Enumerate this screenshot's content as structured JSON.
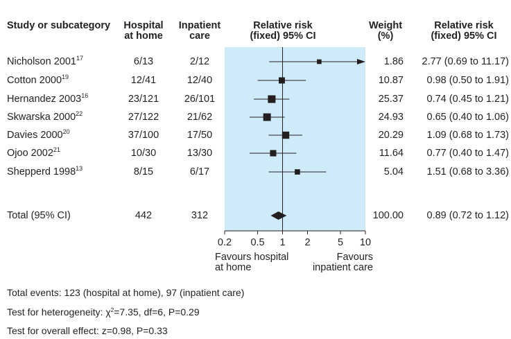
{
  "headers": {
    "study": "Study or subcategory",
    "hospital": [
      "Hospital",
      "at home"
    ],
    "inpatient": [
      "Inpatient",
      "care"
    ],
    "rr_plot": [
      "Relative risk",
      "(fixed) 95% CI"
    ],
    "weight": [
      "Weight",
      "(%)"
    ],
    "rr_text": [
      "Relative risk",
      "(fixed) 95% CI"
    ]
  },
  "studies": [
    {
      "name": "Nicholson 2001",
      "ref": "17",
      "hospital": "6/13",
      "inpatient": "2/12",
      "weight": "1.86",
      "rr": "2.77 (0.69 to 11.17)"
    },
    {
      "name": "Cotton 2000",
      "ref": "19",
      "hospital": "12/41",
      "inpatient": "12/40",
      "weight": "10.87",
      "rr": "0.98 (0.50 to 1.91)"
    },
    {
      "name": "Hernandez 2003",
      "ref": "16",
      "hospital": "23/121",
      "inpatient": "26/101",
      "weight": "25.37",
      "rr": "0.74 (0.45 to 1.21)"
    },
    {
      "name": "Skwarska 2000",
      "ref": "22",
      "hospital": "27/122",
      "inpatient": "21/62",
      "weight": "24.93",
      "rr": "0.65 (0.40 to 1.06)"
    },
    {
      "name": "Davies 2000",
      "ref": "20",
      "hospital": "37/100",
      "inpatient": "17/50",
      "weight": "20.29",
      "rr": "1.09 (0.68 to 1.73)"
    },
    {
      "name": "Ojoo 2002",
      "ref": "21",
      "hospital": "10/30",
      "inpatient": "13/30",
      "weight": "11.64",
      "rr": "0.77 (0.40 to 1.47)"
    },
    {
      "name": "Shepperd 1998",
      "ref": "13",
      "hospital": "8/15",
      "inpatient": "6/17",
      "weight": "5.04",
      "rr": "1.51 (0.68 to 3.36)"
    }
  ],
  "total": {
    "name": "Total (95% CI)",
    "hospital": "442",
    "inpatient": "312",
    "weight": "100.00",
    "rr": "0.89 (0.72 to 1.12)"
  },
  "axis_ticks": [
    "0.2",
    "0.5",
    "1",
    "2",
    "5",
    "10"
  ],
  "favours_left": [
    "Favours hospital",
    "at home"
  ],
  "favours_right": [
    "Favours",
    "inpatient care"
  ],
  "footnotes": {
    "events": "Total events: 123 (hospital at home), 97 (inpatient care)",
    "heterogeneity_prefix": "Test for heterogeneity: ",
    "chi": "χ",
    "chi_sup": "2",
    "heterogeneity_rest": "=7.35, df=6, P=0.29",
    "overall": "Test for overall effect: z=0.98, P=0.33"
  },
  "colors": {
    "plot_bg": "#cfeaf8",
    "ink": "#231f20"
  },
  "chart_data": {
    "type": "forest",
    "scale": "log",
    "xlim": [
      0.2,
      10
    ],
    "reference_line": 1,
    "studies": [
      {
        "rr": 2.77,
        "lower": 0.69,
        "upper": 11.17,
        "weight": 1.86
      },
      {
        "rr": 0.98,
        "lower": 0.5,
        "upper": 1.91,
        "weight": 10.87
      },
      {
        "rr": 0.74,
        "lower": 0.45,
        "upper": 1.21,
        "weight": 25.37
      },
      {
        "rr": 0.65,
        "lower": 0.4,
        "upper": 1.06,
        "weight": 24.93
      },
      {
        "rr": 1.09,
        "lower": 0.68,
        "upper": 1.73,
        "weight": 20.29
      },
      {
        "rr": 0.77,
        "lower": 0.4,
        "upper": 1.47,
        "weight": 11.64
      },
      {
        "rr": 1.51,
        "lower": 0.68,
        "upper": 3.36,
        "weight": 5.04
      }
    ],
    "total": {
      "rr": 0.89,
      "lower": 0.72,
      "upper": 1.12
    }
  }
}
